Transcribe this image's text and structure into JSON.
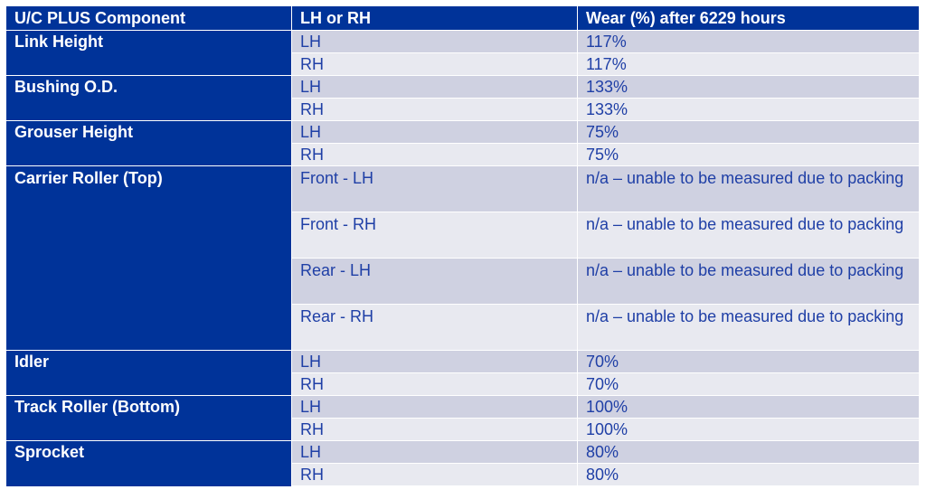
{
  "table": {
    "headers": [
      "U/C PLUS Component",
      "LH or RH",
      "Wear (%) after 6229 hours"
    ],
    "rows": [
      {
        "component": "Link Height",
        "side": "LH",
        "wear": "117%"
      },
      {
        "component": "",
        "side": "RH",
        "wear": "117%"
      },
      {
        "component": "Bushing O.D.",
        "side": "LH",
        "wear": "133%"
      },
      {
        "component": "",
        "side": "RH",
        "wear": "133%"
      },
      {
        "component": "Grouser Height",
        "side": "LH",
        "wear": "75%"
      },
      {
        "component": "",
        "side": "RH",
        "wear": "75%"
      },
      {
        "component": "Carrier Roller (Top)",
        "side": "Front - LH",
        "wear": "n/a – unable to be measured due to packing"
      },
      {
        "component": "",
        "side": "Front - RH",
        "wear": "n/a – unable to be measured due to packing"
      },
      {
        "component": "",
        "side": "Rear - LH",
        "wear": "n/a – unable to be measured due to packing"
      },
      {
        "component": "",
        "side": "Rear - RH",
        "wear": "n/a – unable to be measured due to packing"
      },
      {
        "component": "Idler",
        "side": "LH",
        "wear": "70%"
      },
      {
        "component": "",
        "side": "RH",
        "wear": "70%"
      },
      {
        "component": "Track Roller (Bottom)",
        "side": "LH",
        "wear": "100%"
      },
      {
        "component": "",
        "side": "RH",
        "wear": "100%"
      },
      {
        "component": "Sprocket",
        "side": "LH",
        "wear": "80%"
      },
      {
        "component": "",
        "side": "RH",
        "wear": "80%"
      }
    ]
  },
  "colors": {
    "header_bg": "#003399",
    "header_text": "#ffffff",
    "row_odd": "#cfd1e1",
    "row_even": "#e8e9f0",
    "cell_text": "#1f3fa6"
  }
}
